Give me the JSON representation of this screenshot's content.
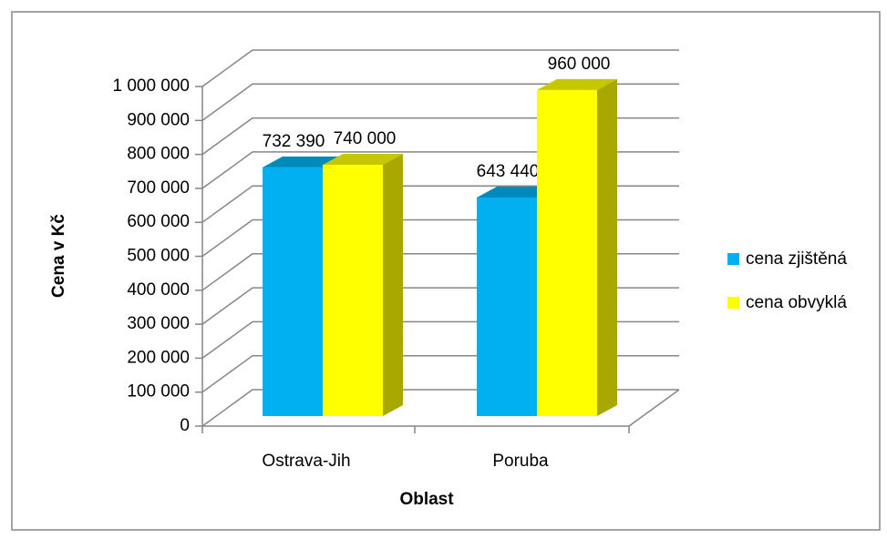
{
  "chart_data": {
    "type": "bar3d",
    "categories": [
      "Ostrava-Jih",
      "Poruba"
    ],
    "series": [
      {
        "name": "cena zjištěná",
        "color": "#00b0f0",
        "values": [
          732390,
          643440
        ],
        "value_labels": [
          "732 390",
          "643 440"
        ]
      },
      {
        "name": "cena obvyklá",
        "color": "#ffff00",
        "values": [
          740000,
          960000
        ],
        "value_labels": [
          "740 000",
          "960 000"
        ]
      }
    ],
    "ylabel": "Cena v Kč",
    "xlabel": "Oblast",
    "ylim": [
      0,
      1000000
    ],
    "yticks": [
      0,
      {
        "value": 100000,
        "label": "100 000"
      },
      {
        "value": 200000,
        "label": "200 000"
      },
      {
        "value": 300000,
        "label": "300 000"
      },
      {
        "value": 400000,
        "label": "400 000"
      },
      {
        "value": 500000,
        "label": "500 000"
      },
      {
        "value": 600000,
        "label": "600 000"
      },
      {
        "value": 700000,
        "label": "700 000"
      },
      {
        "value": 800000,
        "label": "800 000"
      },
      {
        "value": 900000,
        "label": "900 000"
      },
      {
        "value": 1000000,
        "label": "1 000 000"
      }
    ],
    "grid": true,
    "legend": "right"
  }
}
